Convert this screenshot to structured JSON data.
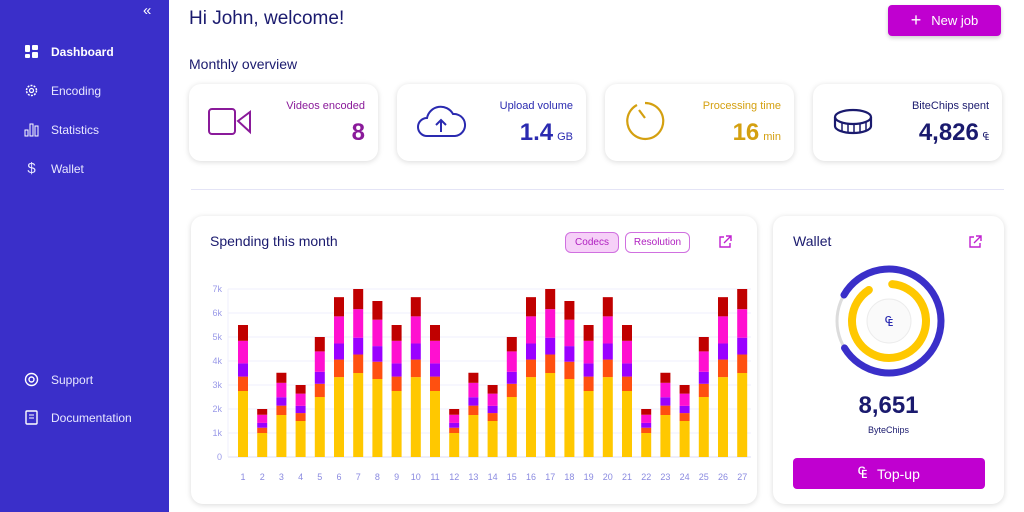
{
  "sidebar": {
    "collapse_icon": "«",
    "items": [
      {
        "label": "Dashboard",
        "icon": "dashboard-icon"
      },
      {
        "label": "Encoding",
        "icon": "gear-icon"
      },
      {
        "label": "Statistics",
        "icon": "bar-chart-icon"
      },
      {
        "label": "Wallet",
        "icon": "dollar-icon"
      },
      {
        "label": "Support",
        "icon": "lifebuoy-icon"
      },
      {
        "label": "Documentation",
        "icon": "book-icon"
      }
    ]
  },
  "header": {
    "title": "Hi John, welcome!",
    "new_job": "New job"
  },
  "overview": {
    "title": "Monthly overview",
    "cards": [
      {
        "label": "Videos encoded",
        "value": "8",
        "unit": "",
        "color": "#8a1a9a"
      },
      {
        "label": "Upload volume",
        "value": "1.4",
        "unit": "GB",
        "color": "#2a2ab0"
      },
      {
        "label": "Processing time",
        "value": "16",
        "unit": "min",
        "color": "#d4a010"
      },
      {
        "label": "BiteChips spent",
        "value": "4,826",
        "unit": "₠",
        "color": "#1a1a6e"
      }
    ]
  },
  "spending": {
    "title": "Spending this month",
    "tabs": [
      "Codecs",
      "Resolution"
    ],
    "active_tab": "Codecs"
  },
  "chart_data": {
    "type": "bar",
    "stacked": true,
    "title": "Spending this month",
    "xlabel": "",
    "ylabel": "",
    "ylim": [
      0,
      7000
    ],
    "yticks": [
      "0",
      "1k",
      "2k",
      "3k",
      "4k",
      "5k",
      "6k",
      "7k"
    ],
    "categories": [
      "1",
      "2",
      "3",
      "4",
      "5",
      "6",
      "7",
      "8",
      "9",
      "10",
      "11",
      "12",
      "13",
      "14",
      "15",
      "16",
      "17",
      "18",
      "19",
      "20",
      "21",
      "22",
      "23",
      "24",
      "25",
      "26",
      "27"
    ],
    "series": [
      {
        "color": "#ffc800",
        "values": [
          2750,
          1000,
          1750,
          1500,
          2500,
          3330,
          3500,
          3250,
          2750,
          3330,
          2750,
          1000,
          1750,
          1500,
          2500,
          3330,
          3500,
          3250,
          2750,
          3330,
          2750,
          1000,
          1750,
          1500,
          2500,
          3330,
          3500
        ]
      },
      {
        "color": "#ff5010",
        "values": [
          600,
          220,
          390,
          330,
          550,
          730,
          770,
          720,
          600,
          730,
          600,
          220,
          390,
          330,
          550,
          730,
          770,
          720,
          600,
          730,
          600,
          220,
          390,
          330,
          550,
          730,
          770
        ]
      },
      {
        "color": "#9a00ff",
        "values": [
          550,
          200,
          350,
          300,
          500,
          670,
          700,
          650,
          550,
          670,
          550,
          200,
          350,
          300,
          500,
          670,
          700,
          650,
          550,
          670,
          550,
          200,
          350,
          300,
          500,
          670,
          700
        ]
      },
      {
        "color": "#ff10d0",
        "values": [
          940,
          340,
          600,
          510,
          850,
          1130,
          1190,
          1100,
          940,
          1130,
          940,
          340,
          600,
          510,
          850,
          1130,
          1190,
          1100,
          940,
          1130,
          940,
          340,
          600,
          510,
          850,
          1130,
          1190
        ]
      },
      {
        "color": "#c00000",
        "values": [
          660,
          240,
          420,
          360,
          600,
          800,
          840,
          780,
          660,
          800,
          660,
          240,
          420,
          360,
          600,
          800,
          840,
          780,
          660,
          800,
          660,
          240,
          420,
          360,
          600,
          800,
          840
        ]
      }
    ]
  },
  "wallet": {
    "title": "Wallet",
    "balance": "8,651",
    "unit": "ByteChips",
    "currency_symbol": "₠",
    "topup": "Top-up",
    "outer_ring_fraction": 0.83,
    "inner_ring_fraction": 0.92
  }
}
